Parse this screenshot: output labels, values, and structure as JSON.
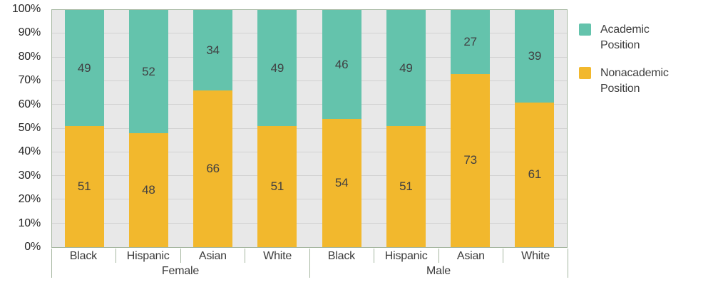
{
  "chart_data": {
    "type": "bar",
    "variant": "stacked-100-percent",
    "title": "",
    "xlabel": "",
    "ylabel": "",
    "groups": [
      {
        "label": "Female",
        "categories": [
          "Black",
          "Hispanic",
          "Asian",
          "White"
        ]
      },
      {
        "label": "Male",
        "categories": [
          "Black",
          "Hispanic",
          "Asian",
          "White"
        ]
      }
    ],
    "series": [
      {
        "name": "Academic Position",
        "color": "#64c3ac",
        "values": [
          49,
          52,
          34,
          49,
          46,
          49,
          27,
          39
        ]
      },
      {
        "name": "Nonacademic Position",
        "color": "#f2b82d",
        "values": [
          51,
          48,
          66,
          51,
          54,
          51,
          73,
          61
        ]
      }
    ],
    "ylim": [
      0,
      100
    ],
    "ytick_labels": [
      "100%",
      "90%",
      "80%",
      "70%",
      "60%",
      "50%",
      "40%",
      "30%",
      "20%",
      "10%",
      "0%"
    ],
    "grid": true,
    "legend_position": "right"
  },
  "legend": {
    "items": [
      {
        "label": "Academic Position",
        "color": "#64c3ac"
      },
      {
        "label": "Nonacademic Position",
        "color": "#f2b82d"
      }
    ]
  },
  "colors": {
    "plot_background": "#e8e8e8",
    "gridline": "#d2d2d2",
    "axis_line": "#a6b7a1",
    "academic": "#64c3ac",
    "nonacademic": "#f2b82d",
    "text": "#3a3a3a"
  }
}
